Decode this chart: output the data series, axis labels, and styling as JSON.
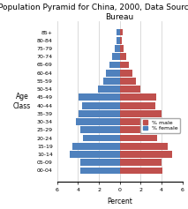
{
  "title": "Population Pyramid for China, 2000, Data Source: US Census\nBureau",
  "xlabel": "Percent",
  "ylabel": "Age\nClass",
  "age_groups": [
    "00-04",
    "05-09",
    "10-14",
    "15-19",
    "20-24",
    "25-29",
    "30-34",
    "35-39",
    "40-44",
    "45-49",
    "50-54",
    "55-59",
    "60-64",
    "65-69",
    "70-74",
    "75-79",
    "80-84",
    "85+"
  ],
  "female": [
    3.8,
    3.8,
    4.8,
    4.5,
    3.5,
    3.8,
    4.2,
    3.9,
    3.6,
    3.9,
    2.1,
    1.6,
    1.3,
    1.0,
    0.7,
    0.5,
    0.3,
    0.3
  ],
  "male": [
    4.1,
    4.0,
    5.0,
    4.6,
    3.6,
    4.0,
    4.5,
    4.0,
    3.4,
    3.5,
    2.0,
    1.5,
    1.2,
    0.9,
    0.6,
    0.4,
    0.2,
    0.3
  ],
  "male_color": "#C0504D",
  "female_color": "#4F81BD",
  "xlim": 6,
  "title_fontsize": 6.5,
  "axis_fontsize": 5.5,
  "tick_fontsize": 4.5,
  "legend_fontsize": 4.5,
  "background_color": "#ffffff",
  "grid_color": "#cccccc"
}
